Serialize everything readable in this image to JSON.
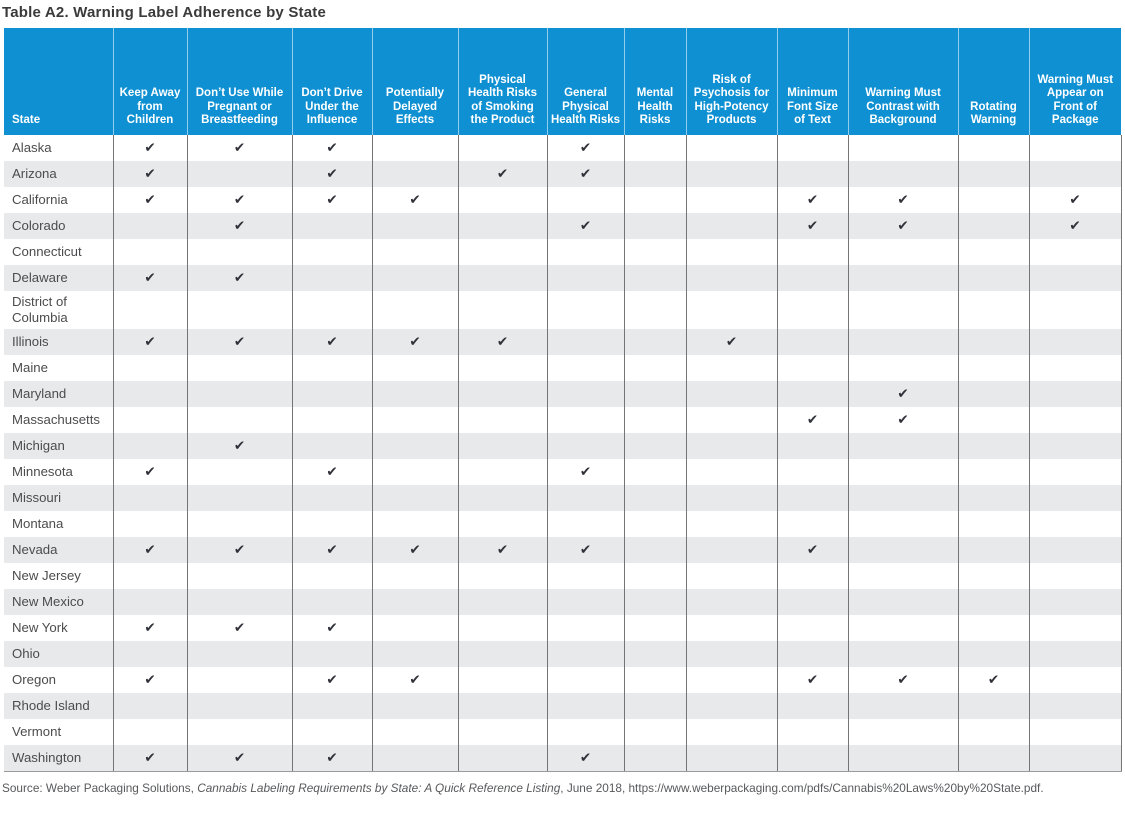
{
  "title": "Table A2. Warning Label Adherence by State",
  "colors": {
    "header_bg": "#0e90d2",
    "stripe": "#e8e9ea",
    "check": "#303139",
    "title_text": "#3a3a3a",
    "body_text": "#4c4c4e"
  },
  "table": {
    "state_header": "State",
    "check_symbol": "✔",
    "columns": [
      "Keep Away from Children",
      "Don’t Use While Pregnant or Breastfeeding",
      "Don’t Drive Under the Influence",
      "Potentially Delayed Effects",
      "Physical Health Risks of Smoking the Product",
      "General Physical Health Risks",
      "Mental Health Risks",
      "Risk of Psychosis for High-Potency Products",
      "Minimum Font Size of Text",
      "Warning Must Contrast with Background",
      "Rotating Warning",
      "Warning Must Appear on Front of Package"
    ],
    "rows": [
      {
        "state": "Alaska",
        "checks": [
          1,
          1,
          1,
          0,
          0,
          1,
          0,
          0,
          0,
          0,
          0,
          0
        ]
      },
      {
        "state": "Arizona",
        "checks": [
          1,
          0,
          1,
          0,
          1,
          1,
          0,
          0,
          0,
          0,
          0,
          0
        ]
      },
      {
        "state": "California",
        "checks": [
          1,
          1,
          1,
          1,
          0,
          0,
          0,
          0,
          1,
          1,
          0,
          1
        ]
      },
      {
        "state": "Colorado",
        "checks": [
          0,
          1,
          0,
          0,
          0,
          1,
          0,
          0,
          1,
          1,
          0,
          1
        ]
      },
      {
        "state": "Connecticut",
        "checks": [
          0,
          0,
          0,
          0,
          0,
          0,
          0,
          0,
          0,
          0,
          0,
          0
        ]
      },
      {
        "state": "Delaware",
        "checks": [
          1,
          1,
          0,
          0,
          0,
          0,
          0,
          0,
          0,
          0,
          0,
          0
        ]
      },
      {
        "state": "District of Columbia",
        "checks": [
          0,
          0,
          0,
          0,
          0,
          0,
          0,
          0,
          0,
          0,
          0,
          0
        ]
      },
      {
        "state": "Illinois",
        "checks": [
          1,
          1,
          1,
          1,
          1,
          0,
          0,
          1,
          0,
          0,
          0,
          0
        ]
      },
      {
        "state": "Maine",
        "checks": [
          0,
          0,
          0,
          0,
          0,
          0,
          0,
          0,
          0,
          0,
          0,
          0
        ]
      },
      {
        "state": "Maryland",
        "checks": [
          0,
          0,
          0,
          0,
          0,
          0,
          0,
          0,
          0,
          1,
          0,
          0
        ]
      },
      {
        "state": "Massachusetts",
        "checks": [
          0,
          0,
          0,
          0,
          0,
          0,
          0,
          0,
          1,
          1,
          0,
          0
        ]
      },
      {
        "state": "Michigan",
        "checks": [
          0,
          1,
          0,
          0,
          0,
          0,
          0,
          0,
          0,
          0,
          0,
          0
        ]
      },
      {
        "state": "Minnesota",
        "checks": [
          1,
          0,
          1,
          0,
          0,
          1,
          0,
          0,
          0,
          0,
          0,
          0
        ]
      },
      {
        "state": "Missouri",
        "checks": [
          0,
          0,
          0,
          0,
          0,
          0,
          0,
          0,
          0,
          0,
          0,
          0
        ]
      },
      {
        "state": "Montana",
        "checks": [
          0,
          0,
          0,
          0,
          0,
          0,
          0,
          0,
          0,
          0,
          0,
          0
        ]
      },
      {
        "state": "Nevada",
        "checks": [
          1,
          1,
          1,
          1,
          1,
          1,
          0,
          0,
          1,
          0,
          0,
          0
        ]
      },
      {
        "state": "New Jersey",
        "checks": [
          0,
          0,
          0,
          0,
          0,
          0,
          0,
          0,
          0,
          0,
          0,
          0
        ]
      },
      {
        "state": "New Mexico",
        "checks": [
          0,
          0,
          0,
          0,
          0,
          0,
          0,
          0,
          0,
          0,
          0,
          0
        ]
      },
      {
        "state": "New York",
        "checks": [
          1,
          1,
          1,
          0,
          0,
          0,
          0,
          0,
          0,
          0,
          0,
          0
        ]
      },
      {
        "state": "Ohio",
        "checks": [
          0,
          0,
          0,
          0,
          0,
          0,
          0,
          0,
          0,
          0,
          0,
          0
        ]
      },
      {
        "state": "Oregon",
        "checks": [
          1,
          0,
          1,
          1,
          0,
          0,
          0,
          0,
          1,
          1,
          1,
          0
        ]
      },
      {
        "state": "Rhode Island",
        "checks": [
          0,
          0,
          0,
          0,
          0,
          0,
          0,
          0,
          0,
          0,
          0,
          0
        ]
      },
      {
        "state": "Vermont",
        "checks": [
          0,
          0,
          0,
          0,
          0,
          0,
          0,
          0,
          0,
          0,
          0,
          0
        ]
      },
      {
        "state": "Washington",
        "checks": [
          1,
          1,
          1,
          0,
          0,
          1,
          0,
          0,
          0,
          0,
          0,
          0
        ]
      }
    ]
  },
  "source": {
    "prefix": "Source: Weber Packaging Solutions, ",
    "italic": "Cannabis Labeling Requirements by State: A Quick Reference Listing",
    "suffix": ", June 2018, https://www.weberpackaging.com/pdfs/Cannabis%20Laws%20by%20State.pdf."
  }
}
